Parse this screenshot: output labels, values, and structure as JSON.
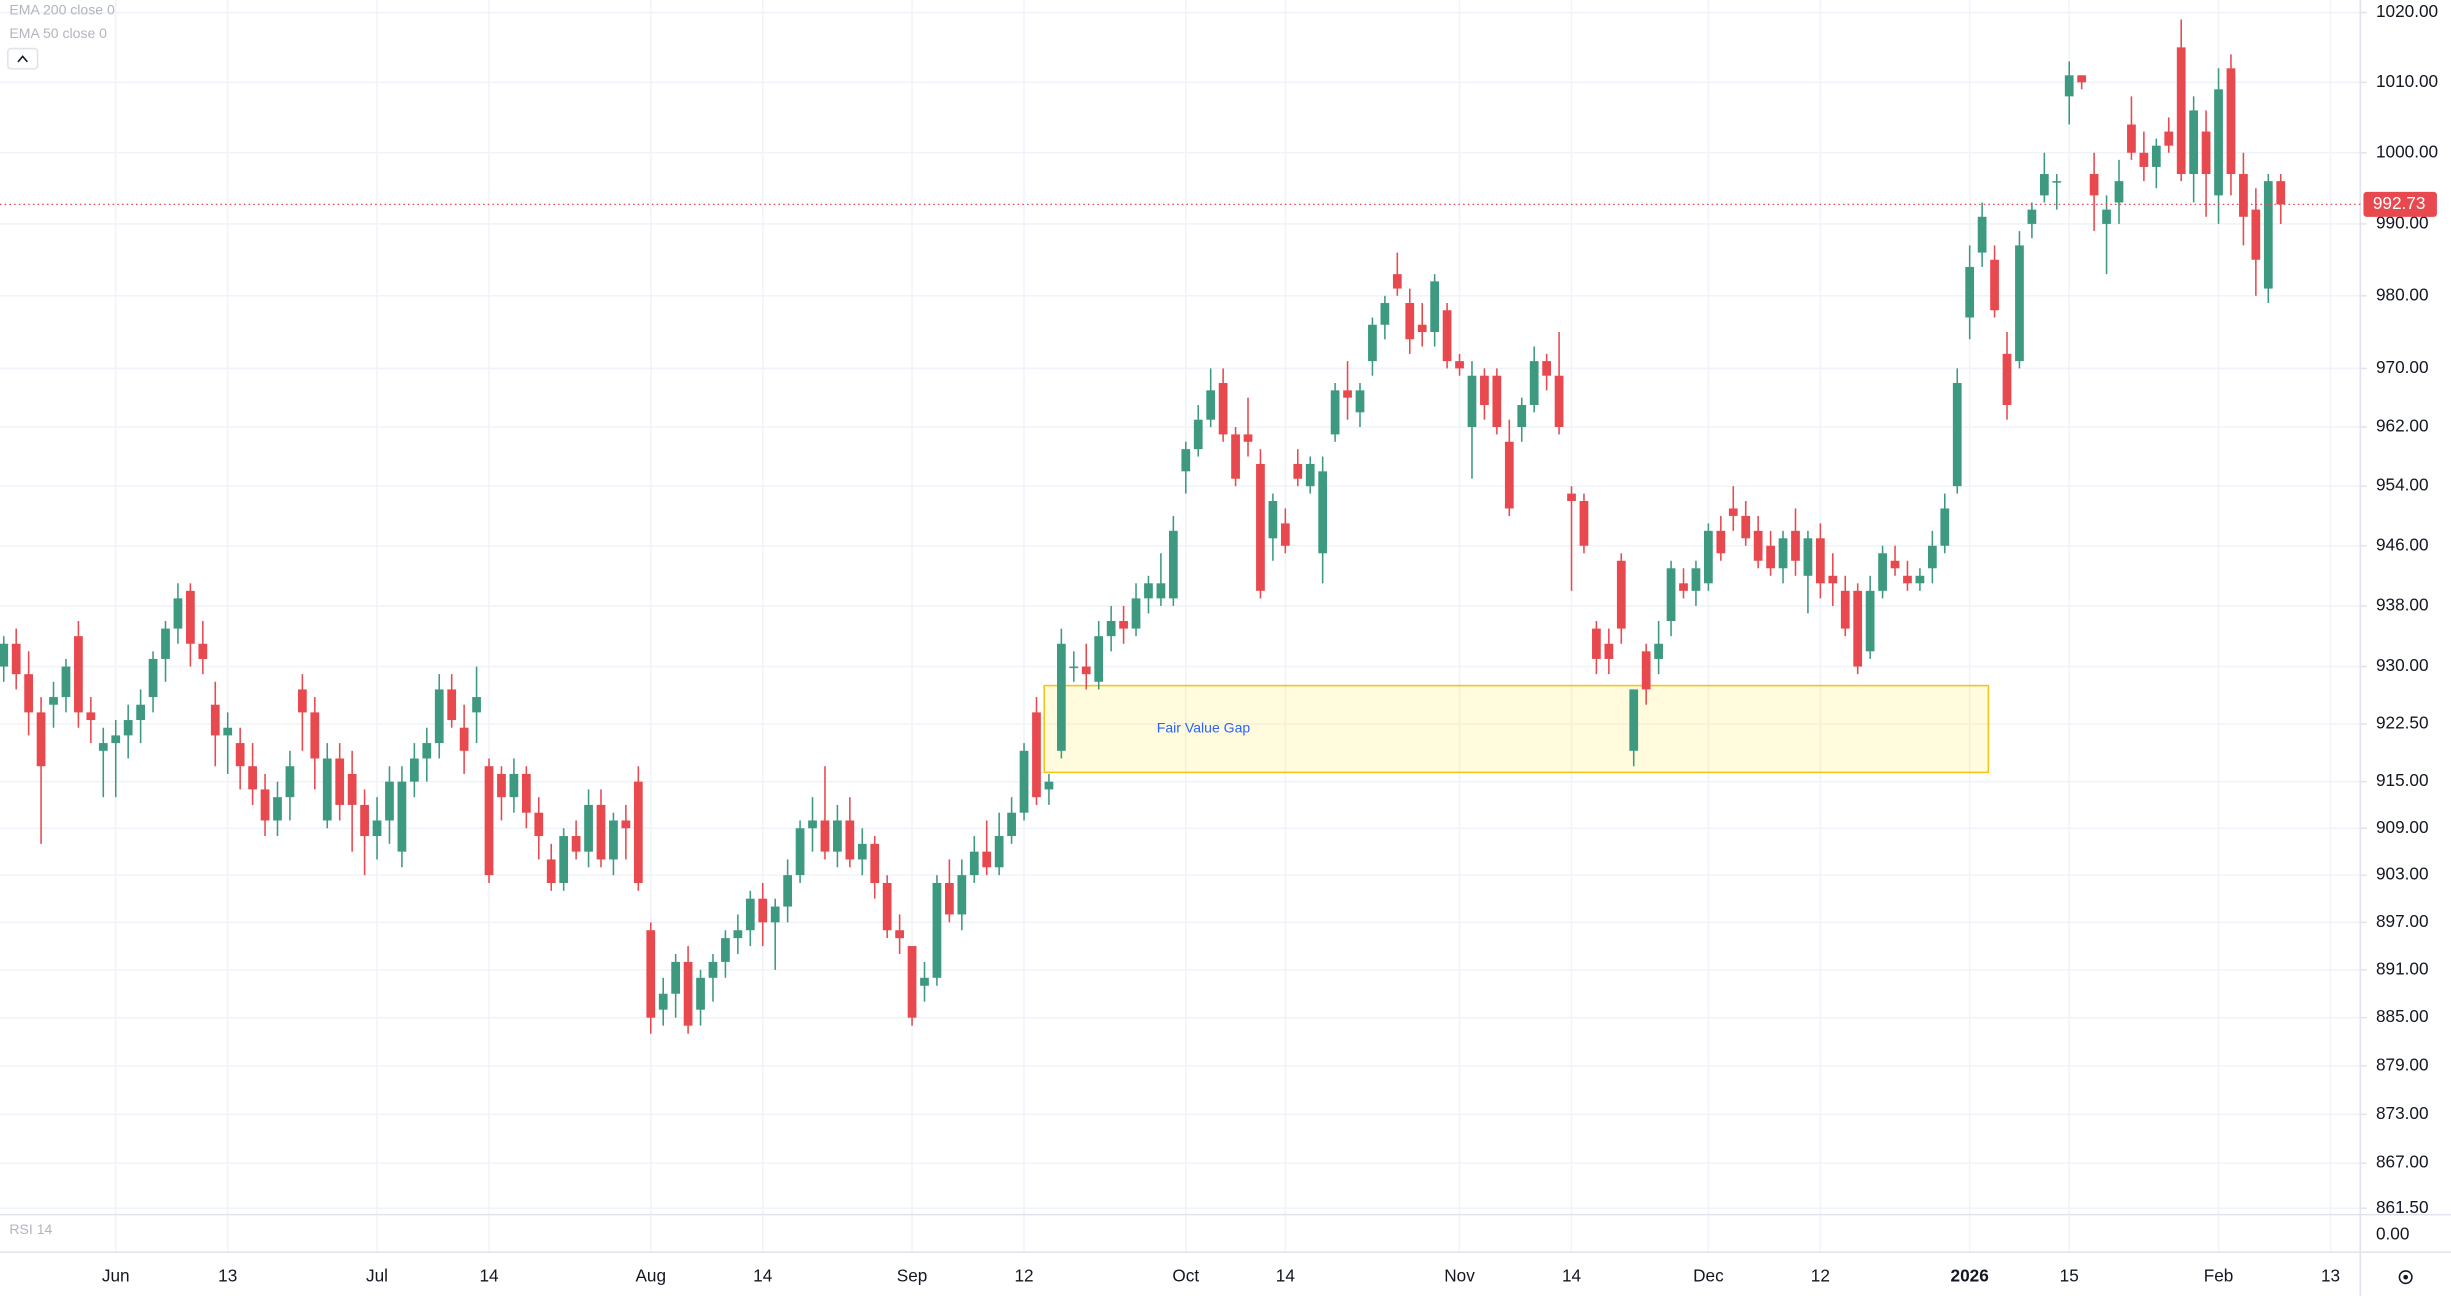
{
  "chart_data": {
    "type": "candlestick",
    "legend_items": [
      "EMA 200 close 0",
      "EMA 50 close 0"
    ],
    "up_color": "#3d9a81",
    "down_color": "#e8494f",
    "log": true,
    "grid": true,
    "ylim": [
      861.1,
      1021.8
    ],
    "yticks": [
      {
        "value": 1020,
        "label": "1020.00"
      },
      {
        "value": 1010,
        "label": "1010.00"
      },
      {
        "value": 1000,
        "label": "1000.00"
      },
      {
        "value": 990,
        "label": "990.00"
      },
      {
        "value": 980,
        "label": "980.00"
      },
      {
        "value": 970,
        "label": "970.00"
      },
      {
        "value": 962,
        "label": "962.00"
      },
      {
        "value": 954,
        "label": "954.00"
      },
      {
        "value": 946,
        "label": "946.00"
      },
      {
        "value": 938,
        "label": "938.00"
      },
      {
        "value": 930,
        "label": "930.00"
      },
      {
        "value": 922.5,
        "label": "922.50"
      },
      {
        "value": 915,
        "label": "915.00"
      },
      {
        "value": 909,
        "label": "909.00"
      },
      {
        "value": 903,
        "label": "903.00"
      },
      {
        "value": 897,
        "label": "897.00"
      },
      {
        "value": 891,
        "label": "891.00"
      },
      {
        "value": 885,
        "label": "885.00"
      },
      {
        "value": 879,
        "label": "879.00"
      },
      {
        "value": 873,
        "label": "873.00"
      },
      {
        "value": 867,
        "label": "867.00"
      },
      {
        "value": 861.5,
        "label": "861.50"
      }
    ],
    "last_price": 992.73,
    "zone": {
      "label": "Fair Value Gap",
      "top": 927.5,
      "bottom": 916.2
    },
    "rsi": {
      "title": "RSI 14",
      "yticks": [
        {
          "value": 0,
          "label": "0.00"
        }
      ]
    },
    "categories": [
      null,
      null,
      null,
      null,
      null,
      null,
      null,
      null,
      null,
      "Jun",
      null,
      null,
      null,
      null,
      null,
      null,
      null,
      null,
      "13",
      null,
      null,
      null,
      null,
      null,
      null,
      null,
      null,
      null,
      null,
      null,
      "Jul",
      null,
      null,
      null,
      null,
      null,
      null,
      null,
      null,
      "14",
      null,
      null,
      null,
      null,
      null,
      null,
      null,
      null,
      null,
      null,
      null,
      null,
      "Aug",
      null,
      null,
      null,
      null,
      null,
      null,
      null,
      null,
      "14",
      null,
      null,
      null,
      null,
      null,
      null,
      null,
      null,
      null,
      null,
      null,
      "Sep",
      null,
      null,
      null,
      null,
      null,
      null,
      null,
      null,
      "12",
      null,
      null,
      null,
      null,
      null,
      null,
      null,
      null,
      null,
      null,
      null,
      null,
      "Oct",
      null,
      null,
      null,
      null,
      null,
      null,
      null,
      "14",
      null,
      null,
      null,
      null,
      null,
      null,
      null,
      null,
      null,
      null,
      null,
      null,
      null,
      "Nov",
      null,
      null,
      null,
      null,
      null,
      null,
      null,
      null,
      "14",
      null,
      null,
      null,
      null,
      null,
      null,
      null,
      null,
      null,
      null,
      "Dec",
      null,
      null,
      null,
      null,
      null,
      null,
      null,
      null,
      "12",
      null,
      null,
      null,
      null,
      null,
      null,
      null,
      null,
      null,
      null,
      null,
      "2026",
      null,
      null,
      null,
      null,
      null,
      null,
      null,
      "15",
      null,
      null,
      null,
      null,
      null,
      null,
      null,
      null,
      null,
      null,
      null,
      "Feb",
      null,
      null,
      null,
      null,
      null,
      null,
      null,
      null,
      "13"
    ],
    "ohlc": [
      [
        930,
        934,
        928,
        933
      ],
      [
        933,
        935,
        927,
        929
      ],
      [
        929,
        932,
        921,
        924
      ],
      [
        924,
        926,
        907,
        917
      ],
      [
        925,
        928,
        922,
        926
      ],
      [
        926,
        931,
        924,
        930
      ],
      [
        934,
        936,
        922,
        924
      ],
      [
        924,
        926,
        920,
        923
      ],
      [
        919,
        922,
        913,
        920
      ],
      [
        920,
        923,
        913,
        921
      ],
      [
        921,
        925,
        918,
        923
      ],
      [
        923,
        927,
        920,
        925
      ],
      [
        926,
        932,
        924,
        931
      ],
      [
        931,
        936,
        928,
        935
      ],
      [
        935,
        941,
        933,
        939
      ],
      [
        940,
        941,
        930,
        933
      ],
      [
        933,
        936,
        929,
        931
      ],
      [
        925,
        928,
        917,
        921
      ],
      [
        921,
        924,
        916,
        922
      ],
      [
        920,
        922,
        914,
        917
      ],
      [
        917,
        920,
        912,
        914
      ],
      [
        914,
        916,
        908,
        910
      ],
      [
        910,
        915,
        908,
        913
      ],
      [
        913,
        919,
        910,
        917
      ],
      [
        927,
        929,
        919,
        924
      ],
      [
        924,
        926,
        914,
        918
      ],
      [
        910,
        920,
        909,
        918
      ],
      [
        918,
        920,
        910,
        912
      ],
      [
        916,
        919,
        906,
        912
      ],
      [
        912,
        914,
        903,
        908
      ],
      [
        908,
        913,
        905,
        910
      ],
      [
        910,
        917,
        907,
        915
      ],
      [
        906,
        917,
        904,
        915
      ],
      [
        915,
        920,
        913,
        918
      ],
      [
        918,
        922,
        915,
        920
      ],
      [
        920,
        929,
        918,
        927
      ],
      [
        927,
        929,
        922,
        923
      ],
      [
        922,
        925,
        916,
        919
      ],
      [
        924,
        930,
        920,
        926
      ],
      [
        917,
        918,
        902,
        903
      ],
      [
        916,
        917,
        910,
        913
      ],
      [
        913,
        918,
        911,
        916
      ],
      [
        916,
        917,
        909,
        911
      ],
      [
        911,
        913,
        905,
        908
      ],
      [
        905,
        907,
        901,
        902
      ],
      [
        902,
        909,
        901,
        908
      ],
      [
        908,
        910,
        905,
        906
      ],
      [
        906,
        914,
        904,
        912
      ],
      [
        912,
        914,
        904,
        905
      ],
      [
        905,
        911,
        903,
        910
      ],
      [
        910,
        912,
        905,
        909
      ],
      [
        915,
        917,
        901,
        902
      ],
      [
        896,
        897,
        883,
        885
      ],
      [
        886,
        890,
        884,
        888
      ],
      [
        888,
        893,
        885,
        892
      ],
      [
        892,
        894,
        883,
        884
      ],
      [
        886,
        891,
        884,
        890
      ],
      [
        890,
        893,
        887,
        892
      ],
      [
        892,
        896,
        890,
        895
      ],
      [
        895,
        898,
        893,
        896
      ],
      [
        896,
        901,
        894,
        900
      ],
      [
        900,
        902,
        894,
        897
      ],
      [
        897,
        900,
        891,
        899
      ],
      [
        899,
        905,
        897,
        903
      ],
      [
        903,
        910,
        902,
        909
      ],
      [
        909,
        913,
        906,
        910
      ],
      [
        910,
        917,
        905,
        906
      ],
      [
        906,
        912,
        904,
        910
      ],
      [
        910,
        913,
        904,
        905
      ],
      [
        905,
        909,
        903,
        907
      ],
      [
        907,
        908,
        900,
        902
      ],
      [
        902,
        903,
        895,
        896
      ],
      [
        896,
        898,
        893,
        895
      ],
      [
        894,
        894,
        884,
        885
      ],
      [
        889,
        892,
        887,
        890
      ],
      [
        890,
        903,
        889,
        902
      ],
      [
        902,
        905,
        897,
        898
      ],
      [
        898,
        905,
        896,
        903
      ],
      [
        903,
        908,
        902,
        906
      ],
      [
        906,
        910,
        903,
        904
      ],
      [
        904,
        911,
        903,
        908
      ],
      [
        908,
        913,
        907,
        911
      ],
      [
        911,
        920,
        910,
        919
      ],
      [
        924,
        926,
        912,
        913
      ],
      [
        914,
        916,
        912,
        915
      ],
      [
        919,
        935,
        918,
        933
      ],
      [
        930,
        932,
        928,
        930
      ],
      [
        930,
        933,
        927,
        929
      ],
      [
        928,
        936,
        927,
        934
      ],
      [
        934,
        938,
        932,
        936
      ],
      [
        936,
        938,
        933,
        935
      ],
      [
        935,
        941,
        934,
        939
      ],
      [
        939,
        942,
        937,
        941
      ],
      [
        939,
        945,
        938,
        941
      ],
      [
        939,
        950,
        938,
        948
      ],
      [
        956,
        960,
        953,
        959
      ],
      [
        959,
        965,
        958,
        963
      ],
      [
        963,
        970,
        962,
        967
      ],
      [
        968,
        970,
        960,
        961
      ],
      [
        961,
        962,
        954,
        955
      ],
      [
        961,
        966,
        958,
        960
      ],
      [
        957,
        959,
        939,
        940
      ],
      [
        947,
        953,
        944,
        952
      ],
      [
        949,
        951,
        945,
        946
      ],
      [
        957,
        959,
        954,
        955
      ],
      [
        954,
        958,
        953,
        957
      ],
      [
        945,
        958,
        941,
        956
      ],
      [
        961,
        968,
        960,
        967
      ],
      [
        967,
        971,
        963,
        966
      ],
      [
        964,
        968,
        962,
        967
      ],
      [
        971,
        977,
        969,
        976
      ],
      [
        976,
        980,
        974,
        979
      ],
      [
        983,
        986,
        980,
        981
      ],
      [
        979,
        981,
        972,
        974
      ],
      [
        976,
        979,
        973,
        975
      ],
      [
        975,
        983,
        973,
        982
      ],
      [
        978,
        979,
        970,
        971
      ],
      [
        971,
        972,
        969,
        970
      ],
      [
        962,
        971,
        955,
        969
      ],
      [
        969,
        970,
        963,
        965
      ],
      [
        969,
        970,
        961,
        962
      ],
      [
        960,
        963,
        950,
        951
      ],
      [
        962,
        966,
        960,
        965
      ],
      [
        965,
        973,
        964,
        971
      ],
      [
        971,
        972,
        967,
        969
      ],
      [
        969,
        975,
        961,
        962
      ],
      [
        953,
        954,
        940,
        952
      ],
      [
        952,
        953,
        945,
        946
      ],
      [
        935,
        936,
        929,
        931
      ],
      [
        933,
        935,
        929,
        931
      ],
      [
        944,
        945,
        933,
        935
      ],
      [
        919,
        927,
        917,
        927
      ],
      [
        932,
        933,
        925,
        927
      ],
      [
        931,
        936,
        929,
        933
      ],
      [
        936,
        944,
        934,
        943
      ],
      [
        941,
        943,
        939,
        940
      ],
      [
        940,
        944,
        938,
        943
      ],
      [
        941,
        949,
        940,
        948
      ],
      [
        948,
        950,
        944,
        945
      ],
      [
        951,
        954,
        948,
        950
      ],
      [
        950,
        952,
        946,
        947
      ],
      [
        948,
        950,
        943,
        944
      ],
      [
        946,
        948,
        942,
        943
      ],
      [
        943,
        948,
        941,
        947
      ],
      [
        948,
        951,
        942,
        944
      ],
      [
        942,
        948,
        937,
        947
      ],
      [
        947,
        949,
        939,
        941
      ],
      [
        942,
        945,
        938,
        941
      ],
      [
        940,
        942,
        934,
        935
      ],
      [
        940,
        941,
        929,
        930
      ],
      [
        932,
        942,
        931,
        940
      ],
      [
        940,
        946,
        939,
        945
      ],
      [
        944,
        946,
        942,
        943
      ],
      [
        942,
        944,
        940,
        941
      ],
      [
        941,
        943,
        940,
        942
      ],
      [
        943,
        948,
        941,
        946
      ],
      [
        946,
        953,
        945,
        951
      ],
      [
        954,
        970,
        953,
        968
      ],
      [
        977,
        987,
        974,
        984
      ],
      [
        986,
        993,
        984,
        991
      ],
      [
        985,
        987,
        977,
        978
      ],
      [
        972,
        975,
        963,
        965
      ],
      [
        971,
        989,
        970,
        987
      ],
      [
        990,
        993,
        988,
        992
      ],
      [
        994,
        1000,
        993,
        997
      ],
      [
        996,
        997,
        992,
        996
      ],
      [
        1008,
        1013,
        1004,
        1011
      ],
      [
        1011,
        1011,
        1009,
        1010
      ],
      [
        997,
        1000,
        989,
        994
      ],
      [
        990,
        994,
        983,
        992
      ],
      [
        993,
        999,
        990,
        996
      ],
      [
        1004,
        1008,
        999,
        1000
      ],
      [
        1000,
        1003,
        996,
        998
      ],
      [
        998,
        1002,
        995,
        1001
      ],
      [
        1003,
        1005,
        1000,
        1001
      ],
      [
        1015,
        1019,
        996,
        997
      ],
      [
        997,
        1008,
        993,
        1006
      ],
      [
        1003,
        1006,
        991,
        997
      ],
      [
        994,
        1012,
        990,
        1009
      ],
      [
        1012,
        1014,
        994,
        997
      ],
      [
        997,
        1000,
        987,
        991
      ],
      [
        992,
        995,
        980,
        985
      ],
      [
        981,
        997,
        979,
        996
      ],
      [
        996,
        997,
        990,
        992.73
      ],
      null,
      null,
      null,
      null
    ]
  }
}
